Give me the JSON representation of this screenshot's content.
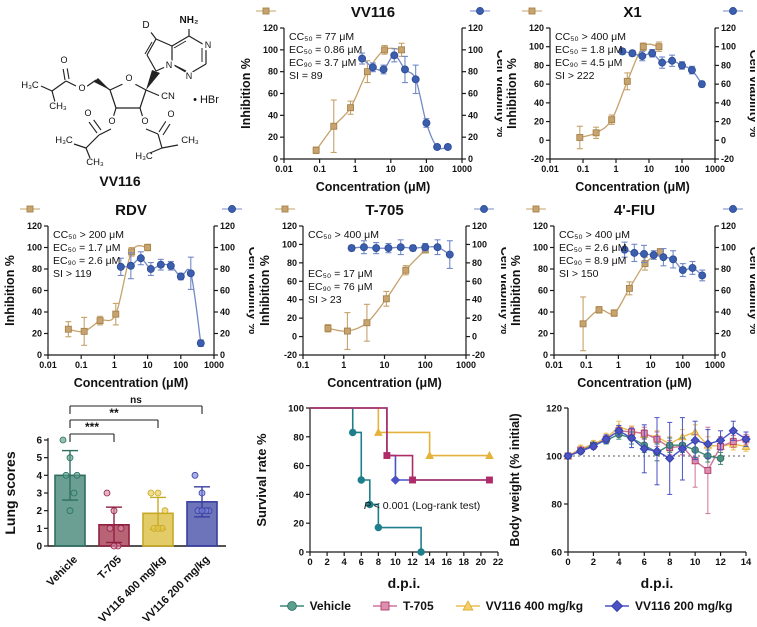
{
  "molecule": {
    "name": "VV116",
    "labels": {
      "amine": "NH₂",
      "deuterium": "D",
      "n1": "N",
      "n2": "N",
      "n3": "N",
      "o_ring": "O",
      "o5": "O",
      "o5c": "O",
      "o3": "O",
      "o3c": "O",
      "o2": "O",
      "o2c": "O",
      "nitrile": "CN",
      "salt": "• HBr",
      "m1": "H₃C",
      "m2": "CH₃",
      "m3": "H₃C",
      "m4": "CH₃",
      "m5": "H₃C",
      "m6": "CH₃"
    }
  },
  "colors": {
    "inhibition_fill": "#C9A36E",
    "inhibition_stroke": "#A5824C",
    "inhibition_line": "#C6A26B",
    "viability_fill": "#3B5EAE",
    "viability_stroke": "#2E4D96",
    "viability_line": "#7289C6",
    "axis": "#1A1A1A"
  },
  "chart_data": [
    {
      "type": "dose_response",
      "id": "vv116",
      "title": "VV116",
      "xlabel": "Concentration (μM)",
      "ylabel_left": "Inhibition %",
      "ylabel_right": "Cell viability %",
      "xlim": [
        0.01,
        1000
      ],
      "xticks": [
        "0.01",
        "0.1",
        "1",
        "10",
        "100",
        "1000"
      ],
      "ylim": [
        0,
        120
      ],
      "ytick_step": 20,
      "annotations": [
        "CC₅₀ = 77 μM",
        "EC₅₀ = 0.86 μM",
        "EC₉₀ = 3.7 μM",
        "SI = 89"
      ],
      "annotation_gap": 0,
      "inhibition": {
        "x": [
          0.08,
          0.25,
          0.74,
          2.2,
          6.7,
          20
        ],
        "y": [
          8,
          30,
          47,
          80,
          100,
          100
        ],
        "err": [
          3,
          24,
          6,
          10,
          4,
          6
        ]
      },
      "viability": {
        "x": [
          1.56,
          3.13,
          6.25,
          12.5,
          25,
          50,
          100,
          200,
          400
        ],
        "y": [
          92,
          84,
          82,
          95,
          82,
          73,
          33,
          11,
          11
        ],
        "err": [
          5,
          4,
          4,
          6,
          12,
          13,
          4,
          2,
          2
        ]
      }
    },
    {
      "type": "dose_response",
      "id": "x1",
      "title": "X1",
      "xlabel": "Concentration (μM)",
      "ylabel_left": "Inhibition %",
      "ylabel_right": "Cell viability %",
      "xlim": [
        0.01,
        1000
      ],
      "xticks": [
        "0.01",
        "0.1",
        "1",
        "10",
        "100",
        "1000"
      ],
      "ylim": [
        -20,
        120
      ],
      "ytick_step": 20,
      "annotations": [
        "CC₅₀ > 400 μM",
        "EC₅₀ = 1.8 μM",
        "EC₉₀ = 4.5 μM",
        "SI > 222"
      ],
      "annotation_gap": 0,
      "inhibition": {
        "x": [
          0.08,
          0.25,
          0.74,
          2.2,
          6.7,
          20
        ],
        "y": [
          3,
          8,
          22,
          63,
          100,
          100
        ],
        "err": [
          12,
          6,
          5,
          9,
          4,
          5
        ]
      },
      "viability": {
        "x": [
          1.56,
          3.13,
          6.25,
          12.5,
          25,
          50,
          100,
          200,
          400
        ],
        "y": [
          95,
          93,
          90,
          93,
          83,
          85,
          80,
          75,
          60
        ],
        "err": [
          3,
          3,
          5,
          4,
          6,
          6,
          4,
          4,
          3
        ]
      }
    },
    {
      "type": "dose_response",
      "id": "rdv",
      "title": "RDV",
      "xlabel": "Concentration (μM)",
      "ylabel_left": "Inhibition %",
      "ylabel_right": "Cell viability %",
      "xlim": [
        0.01,
        1000
      ],
      "xticks": [
        "0.01",
        "0.1",
        "1",
        "10",
        "100",
        "1000"
      ],
      "ylim": [
        0,
        120
      ],
      "ytick_step": 20,
      "annotations": [
        "CC₅₀ > 200 μM",
        "EC₅₀ = 1.7 μM",
        "EC₉₀ = 2.6 μM",
        "SI > 119"
      ],
      "annotation_gap": 0,
      "inhibition": {
        "x": [
          0.041,
          0.123,
          0.37,
          1.1,
          3.3,
          10
        ],
        "y": [
          24,
          22,
          32,
          38,
          96,
          100
        ],
        "err": [
          7,
          13,
          4,
          10,
          4,
          3
        ]
      },
      "viability": {
        "x": [
          1.56,
          3.13,
          6.25,
          12.5,
          25,
          50,
          100,
          200,
          400
        ],
        "y": [
          82,
          83,
          90,
          80,
          84,
          83,
          73,
          76,
          11
        ],
        "err": [
          8,
          12,
          6,
          6,
          5,
          4,
          3,
          15,
          3
        ]
      }
    },
    {
      "type": "dose_response",
      "id": "t705",
      "title": "T-705",
      "xlabel": "Concentration (μM)",
      "ylabel_left": "Inhibition %",
      "ylabel_right": "Cell viability %",
      "xlim": [
        0.1,
        1000
      ],
      "xticks": [
        "0.1",
        "1",
        "10",
        "100",
        "1000"
      ],
      "ylim": [
        -20,
        120
      ],
      "ytick_step": 20,
      "annotations": [
        "CC₅₀ > 400 μM",
        "EC₅₀ = 17 μM",
        "EC₉₀ = 76 μM",
        "SI > 23"
      ],
      "annotation_gap": 26,
      "inhibition": {
        "x": [
          0.41,
          1.23,
          3.7,
          11.1,
          33.3,
          100
        ],
        "y": [
          9,
          6,
          15,
          41,
          72,
          94
        ],
        "err": [
          4,
          20,
          20,
          8,
          5,
          3
        ]
      },
      "viability": {
        "x": [
          1.56,
          3.13,
          6.25,
          12.5,
          25,
          50,
          100,
          200,
          400
        ],
        "y": [
          96,
          97,
          96,
          96,
          97,
          96,
          97,
          97,
          89
        ],
        "err": [
          3,
          7,
          6,
          5,
          8,
          3,
          4,
          8,
          15
        ]
      }
    },
    {
      "type": "dose_response",
      "id": "fiu",
      "title": "4'-FIU",
      "xlabel": "Concentration (μM)",
      "ylabel_left": "Inhibition %",
      "ylabel_right": "Cell viability %",
      "xlim": [
        0.01,
        1000
      ],
      "xticks": [
        "0.01",
        "0.1",
        "1",
        "10",
        "100",
        "1000"
      ],
      "ylim": [
        0,
        120
      ],
      "ytick_step": 20,
      "annotations": [
        "CC₅₀ > 400 μM",
        "EC₅₀ = 2.6 μM",
        "EC₉₀ = 8.9 μM",
        "SI > 150"
      ],
      "annotation_gap": 0,
      "inhibition": {
        "x": [
          0.08,
          0.25,
          0.74,
          2.2,
          6.7,
          20
        ],
        "y": [
          29,
          42,
          39,
          62,
          85,
          96
        ],
        "err": [
          25,
          3,
          3,
          6,
          6,
          3
        ]
      },
      "viability": {
        "x": [
          1.56,
          3.13,
          6.25,
          12.5,
          25,
          50,
          100,
          200,
          400
        ],
        "y": [
          98,
          95,
          94,
          93,
          91,
          89,
          79,
          81,
          74
        ],
        "err": [
          7,
          8,
          8,
          4,
          8,
          8,
          6,
          6,
          5
        ]
      }
    },
    {
      "type": "bar_scatter",
      "id": "lung",
      "ylabel": "Lung scores",
      "ylim": [
        0,
        6
      ],
      "categories": [
        "Vehicle",
        "T-705",
        "VV116 400 mg/kg",
        "VV116 200 mg/kg"
      ],
      "values": [
        4.0,
        1.2,
        1.85,
        2.5
      ],
      "errors": [
        1.4,
        1.0,
        0.9,
        0.85
      ],
      "points": [
        [
          6,
          5,
          4,
          4,
          3,
          2
        ],
        [
          3,
          2,
          1,
          1,
          0,
          0
        ],
        [
          3,
          3,
          2,
          1,
          1,
          1
        ],
        [
          4,
          3,
          2,
          2,
          2,
          2
        ]
      ],
      "bar_fill": [
        "#4B8A7C",
        "#A84158",
        "#DDBF45",
        "#4D55A9"
      ],
      "bar_stroke": [
        "#2E6F60",
        "#8F2040",
        "#C7A928",
        "#383FA0"
      ],
      "dot_fill": [
        "#5BA08F",
        "#D989A8",
        "#E8C94F",
        "#7A83D8"
      ],
      "sig": [
        {
          "label": "***",
          "to": 1,
          "level": 0
        },
        {
          "label": "**",
          "to": 2,
          "level": 1
        },
        {
          "label": "ns",
          "to": 3,
          "level": 2
        }
      ]
    },
    {
      "type": "km_survival",
      "id": "survival",
      "ylabel": "Survival rate %",
      "xlabel": "d.p.i.",
      "xlim": [
        0,
        22
      ],
      "xtick_step": 2,
      "ylim": [
        0,
        100
      ],
      "ytick_step": 20,
      "annotation": {
        "italic": "P",
        "text": " < 0.001 (Log-rank test)"
      },
      "series": [
        {
          "name": "Vehicle",
          "color": "#1E7F8C",
          "marker": "circle",
          "steps": [
            [
              0,
              100
            ],
            [
              5,
              100
            ],
            [
              5,
              83
            ],
            [
              6,
              83
            ],
            [
              6,
              50
            ],
            [
              7,
              50
            ],
            [
              7,
              33
            ],
            [
              8,
              33
            ],
            [
              8,
              17
            ],
            [
              13,
              17
            ],
            [
              13,
              0
            ]
          ],
          "markers": [
            [
              5,
              83
            ],
            [
              6,
              50
            ],
            [
              7,
              33
            ],
            [
              8,
              17
            ],
            [
              13,
              0
            ]
          ]
        },
        {
          "name": "VV116 400 mg/kg",
          "color": "#E5B33C",
          "marker": "triangle",
          "steps": [
            [
              0,
              100
            ],
            [
              8,
              100
            ],
            [
              8,
              83
            ],
            [
              14,
              83
            ],
            [
              14,
              67
            ],
            [
              21,
              67
            ]
          ],
          "markers": [
            [
              8,
              83
            ],
            [
              14,
              67
            ],
            [
              21,
              67
            ]
          ]
        },
        {
          "name": "VV116 200 mg/kg",
          "color": "#4A52C4",
          "marker": "diamond",
          "steps": [
            [
              0,
              100
            ],
            [
              9,
              100
            ],
            [
              9,
              67
            ],
            [
              10,
              67
            ],
            [
              10,
              50
            ],
            [
              21,
              50
            ]
          ],
          "markers": [
            [
              10,
              50
            ]
          ]
        },
        {
          "name": "T-705",
          "color": "#B02C68",
          "marker": "square",
          "steps": [
            [
              0,
              100
            ],
            [
              9,
              100
            ],
            [
              9,
              67
            ],
            [
              12,
              67
            ],
            [
              12,
              50
            ],
            [
              21,
              50
            ]
          ],
          "markers": [
            [
              9,
              67
            ],
            [
              12,
              50
            ],
            [
              21,
              50
            ]
          ]
        }
      ]
    },
    {
      "type": "line_error",
      "id": "bodyweight",
      "ylabel": "Body weight (% initial)",
      "xlabel": "d.p.i.",
      "xlim": [
        0,
        14
      ],
      "xtick_step": 2,
      "ylim": [
        60,
        120
      ],
      "yticks": [
        60,
        80,
        100,
        120
      ],
      "ref_line": 100,
      "x": [
        0,
        1,
        2,
        3,
        4,
        5,
        6,
        7,
        8,
        9,
        10,
        11,
        12,
        13,
        14
      ],
      "series": [
        {
          "name": "VV116 400 mg/kg",
          "line": "#E9BE4E",
          "fill": "#F4D06A",
          "stroke": "#DFAC33",
          "marker": "triangle",
          "y": [
            100,
            103,
            105,
            107.5,
            112,
            110.5,
            109,
            108,
            105,
            108,
            110,
            104.5,
            104,
            105,
            104
          ],
          "err": [
            1.2,
            1.5,
            1.5,
            2,
            2.5,
            2,
            2,
            2.5,
            3,
            3,
            3,
            3.5,
            4,
            2.5,
            2
          ]
        },
        {
          "name": "T-705",
          "line": "#D0739A",
          "fill": "#DD8FB0",
          "stroke": "#B23A6A",
          "marker": "square",
          "y": [
            100,
            102.5,
            104.5,
            107,
            110.5,
            110,
            109.5,
            107,
            103.5,
            104,
            98,
            94,
            104,
            106,
            107
          ],
          "err": [
            0.8,
            1,
            1.2,
            1.8,
            2,
            2,
            2.5,
            3,
            3,
            3.5,
            11,
            18,
            4,
            2.5,
            2
          ]
        },
        {
          "name": "Vehicle",
          "line": "#3F8578",
          "fill": "#4F9183",
          "stroke": "#2E6F60",
          "marker": "circle",
          "y": [
            100,
            102,
            104.5,
            106.5,
            109,
            107.5,
            104.5,
            101.5,
            104.5,
            104.5,
            102.5,
            100,
            99
          ],
          "err": [
            0.8,
            1,
            1.2,
            1.5,
            2,
            2.5,
            3,
            3.5,
            3,
            3,
            3,
            2.5,
            2.5
          ]
        },
        {
          "name": "VV116 200 mg/kg",
          "line": "#4A52C4",
          "fill": "#4A52C4",
          "stroke": "#343CA8",
          "marker": "diamond",
          "y": [
            100,
            102,
            104,
            107,
            110.5,
            107.5,
            103,
            102,
            99,
            103,
            106.5,
            105,
            106.5,
            110.5,
            107
          ],
          "err": [
            0.8,
            1,
            1.2,
            1.8,
            2.2,
            4,
            10,
            14,
            15,
            13,
            8,
            6,
            4,
            4,
            3
          ]
        }
      ]
    }
  ],
  "legend": {
    "items": [
      {
        "label": "Vehicle",
        "marker": "circle",
        "fill": "#5BA08F",
        "stroke": "#2E6F60",
        "line": "#3F8578"
      },
      {
        "label": "T-705",
        "marker": "square",
        "fill": "#DD8FB0",
        "stroke": "#B23A6A",
        "line": "#D0739A"
      },
      {
        "label": "VV116 400 mg/kg",
        "marker": "triangle",
        "fill": "#F4D06A",
        "stroke": "#DFAC33",
        "line": "#E9BE4E"
      },
      {
        "label": "VV116 200 mg/kg",
        "marker": "diamond",
        "fill": "#4A52C4",
        "stroke": "#343CA8",
        "line": "#4A52C4"
      }
    ]
  }
}
